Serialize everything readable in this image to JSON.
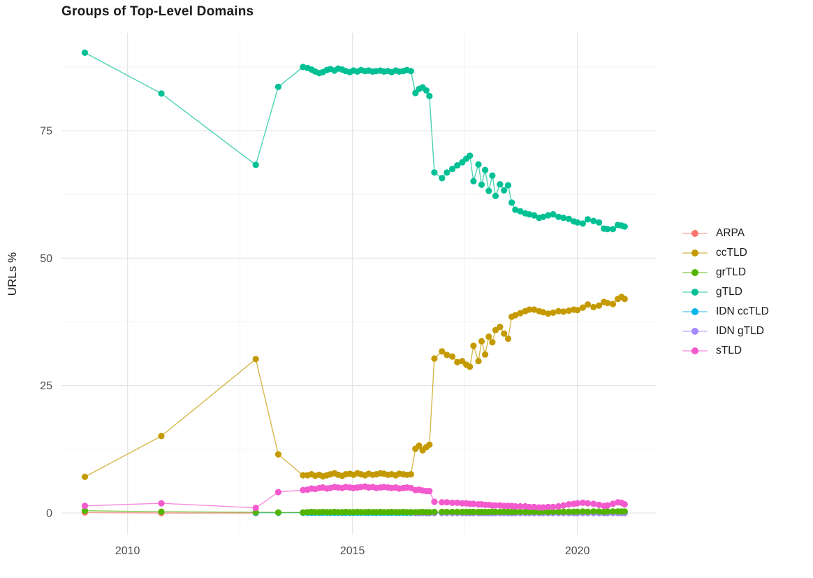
{
  "title": "Groups of Top-Level Domains",
  "chart_data": {
    "type": "line",
    "title": "Groups of Top-Level Domains",
    "xlabel": "",
    "ylabel": "URLs %",
    "grid": true,
    "legend_position": "right",
    "xlim": [
      2008.53,
      2021.76
    ],
    "ylim": [
      -4.25,
      94.2
    ],
    "x_ticks": {
      "labels": [
        "2010",
        "2015",
        "2020"
      ],
      "values": [
        2010,
        2015,
        2020
      ],
      "minor": [
        2012.5,
        2017.5
      ]
    },
    "y_ticks": {
      "labels": [
        "0",
        "25",
        "50",
        "75"
      ],
      "values": [
        0,
        25,
        50,
        75
      ],
      "minor": [
        12.5,
        37.5,
        62.5,
        87.5
      ]
    },
    "grid_major_color": "#e6e6e6",
    "grid_minor_color": "#f2f2f2",
    "axis_text_color": "#4d4d4d",
    "series": [
      {
        "name": "ARPA",
        "color": "#F8766D",
        "z": 0,
        "x": [
          2009.05,
          2010.75,
          2012.85
        ],
        "y": [
          0.1,
          0.0,
          0.0
        ]
      },
      {
        "name": "ccTLD",
        "color": "#C49A00",
        "z": 3,
        "x": [
          2009.05,
          2010.75,
          2012.85,
          2013.35,
          2013.9,
          2014.0,
          2014.09,
          2014.17,
          2014.26,
          2014.34,
          2014.43,
          2014.51,
          2014.6,
          2014.68,
          2014.77,
          2014.85,
          2014.94,
          2015.02,
          2015.11,
          2015.19,
          2015.28,
          2015.36,
          2015.45,
          2015.53,
          2015.62,
          2015.7,
          2015.79,
          2015.87,
          2015.96,
          2016.04,
          2016.13,
          2016.21,
          2016.3,
          2016.4,
          2016.48,
          2016.56,
          2016.64,
          2016.71,
          2016.82,
          2016.99,
          2017.1,
          2017.22,
          2017.33,
          2017.44,
          2017.53,
          2017.61,
          2017.69,
          2017.8,
          2017.87,
          2017.95,
          2018.03,
          2018.11,
          2018.18,
          2018.28,
          2018.37,
          2018.46,
          2018.54,
          2018.62,
          2018.73,
          2018.84,
          2018.93,
          2019.04,
          2019.15,
          2019.24,
          2019.35,
          2019.46,
          2019.58,
          2019.69,
          2019.81,
          2019.92,
          2020.0,
          2020.12,
          2020.23,
          2020.36,
          2020.48,
          2020.59,
          2020.67,
          2020.79,
          2020.9,
          2020.98,
          2021.05
        ],
        "y": [
          7.1,
          15.1,
          30.2,
          11.5,
          7.4,
          7.4,
          7.6,
          7.3,
          7.5,
          7.2,
          7.4,
          7.6,
          7.8,
          7.5,
          7.3,
          7.6,
          7.7,
          7.5,
          7.8,
          7.6,
          7.4,
          7.7,
          7.5,
          7.6,
          7.8,
          7.7,
          7.5,
          7.6,
          7.4,
          7.7,
          7.6,
          7.5,
          7.6,
          12.6,
          13.2,
          12.3,
          12.9,
          13.4,
          30.3,
          31.7,
          31.0,
          30.7,
          29.6,
          29.8,
          29.1,
          28.7,
          32.8,
          29.8,
          33.7,
          31.1,
          34.6,
          33.5,
          35.9,
          36.5,
          35.2,
          34.2,
          38.5,
          38.8,
          39.2,
          39.6,
          39.9,
          39.9,
          39.6,
          39.4,
          39.1,
          39.3,
          39.6,
          39.5,
          39.7,
          39.9,
          39.8,
          40.3,
          40.9,
          40.4,
          40.7,
          41.4,
          41.2,
          41.0,
          42.0,
          42.4,
          42.0
        ]
      },
      {
        "name": "grTLD",
        "color": "#53B400",
        "z": 4,
        "x": [
          2009.05,
          2010.75,
          2012.85,
          2013.35,
          2013.9,
          2014.0,
          2014.09,
          2014.17,
          2014.26,
          2014.34,
          2014.43,
          2014.51,
          2014.6,
          2014.68,
          2014.77,
          2014.85,
          2014.94,
          2015.02,
          2015.11,
          2015.19,
          2015.28,
          2015.36,
          2015.45,
          2015.53,
          2015.62,
          2015.7,
          2015.79,
          2015.87,
          2015.96,
          2016.04,
          2016.13,
          2016.21,
          2016.3,
          2016.4,
          2016.48,
          2016.56,
          2016.64,
          2016.71,
          2016.82,
          2016.99,
          2017.1,
          2017.22,
          2017.33,
          2017.44,
          2017.53,
          2017.61,
          2017.69,
          2017.8,
          2017.87,
          2017.95,
          2018.03,
          2018.11,
          2018.18,
          2018.28,
          2018.37,
          2018.46,
          2018.54,
          2018.62,
          2018.73,
          2018.84,
          2018.93,
          2019.04,
          2019.15,
          2019.24,
          2019.35,
          2019.46,
          2019.58,
          2019.69,
          2019.81,
          2019.92,
          2020.0,
          2020.12,
          2020.23,
          2020.36,
          2020.48,
          2020.59,
          2020.67,
          2020.79,
          2020.9,
          2020.98,
          2021.05
        ],
        "y": [
          0.45,
          0.25,
          0.15,
          0.1,
          0.1,
          0.15,
          0.2,
          0.15,
          0.15,
          0.2,
          0.15,
          0.15,
          0.2,
          0.15,
          0.15,
          0.2,
          0.15,
          0.15,
          0.2,
          0.15,
          0.15,
          0.2,
          0.15,
          0.15,
          0.2,
          0.15,
          0.15,
          0.2,
          0.15,
          0.15,
          0.2,
          0.15,
          0.15,
          0.15,
          0.15,
          0.2,
          0.15,
          0.15,
          0.2,
          0.2,
          0.2,
          0.2,
          0.2,
          0.2,
          0.2,
          0.2,
          0.2,
          0.2,
          0.2,
          0.2,
          0.2,
          0.25,
          0.2,
          0.2,
          0.25,
          0.2,
          0.2,
          0.2,
          0.25,
          0.2,
          0.2,
          0.25,
          0.2,
          0.25,
          0.2,
          0.25,
          0.25,
          0.25,
          0.25,
          0.25,
          0.25,
          0.3,
          0.25,
          0.3,
          0.3,
          0.25,
          0.3,
          0.3,
          0.3,
          0.3,
          0.3
        ]
      },
      {
        "name": "gTLD",
        "color": "#00C094",
        "z": 5,
        "x": [
          2009.05,
          2010.75,
          2012.85,
          2013.35,
          2013.9,
          2014.0,
          2014.09,
          2014.17,
          2014.26,
          2014.34,
          2014.43,
          2014.51,
          2014.6,
          2014.68,
          2014.77,
          2014.85,
          2014.94,
          2015.02,
          2015.11,
          2015.19,
          2015.28,
          2015.36,
          2015.45,
          2015.53,
          2015.62,
          2015.7,
          2015.79,
          2015.87,
          2015.96,
          2016.04,
          2016.13,
          2016.21,
          2016.3,
          2016.4,
          2016.48,
          2016.56,
          2016.64,
          2016.71,
          2016.82,
          2016.99,
          2017.1,
          2017.22,
          2017.33,
          2017.44,
          2017.53,
          2017.61,
          2017.69,
          2017.8,
          2017.87,
          2017.95,
          2018.03,
          2018.11,
          2018.18,
          2018.28,
          2018.37,
          2018.46,
          2018.54,
          2018.62,
          2018.73,
          2018.84,
          2018.93,
          2019.04,
          2019.15,
          2019.24,
          2019.35,
          2019.46,
          2019.58,
          2019.69,
          2019.81,
          2019.92,
          2020.0,
          2020.12,
          2020.23,
          2020.36,
          2020.48,
          2020.59,
          2020.67,
          2020.79,
          2020.9,
          2020.98,
          2021.05
        ],
        "y": [
          90.3,
          82.3,
          68.3,
          83.6,
          87.5,
          87.3,
          87.0,
          86.6,
          86.3,
          86.5,
          86.9,
          87.1,
          86.8,
          87.2,
          87.0,
          86.7,
          86.5,
          86.8,
          86.6,
          86.9,
          86.7,
          86.8,
          86.6,
          86.7,
          86.8,
          86.6,
          86.7,
          86.5,
          86.8,
          86.6,
          86.7,
          86.9,
          86.7,
          82.4,
          83.2,
          83.5,
          82.9,
          81.8,
          66.8,
          65.7,
          66.8,
          67.5,
          68.2,
          68.8,
          69.5,
          70.1,
          65.1,
          68.4,
          64.4,
          67.3,
          63.2,
          66.2,
          62.2,
          64.5,
          63.3,
          64.3,
          60.9,
          59.5,
          59.2,
          58.8,
          58.6,
          58.4,
          57.9,
          58.1,
          58.4,
          58.6,
          58.1,
          57.9,
          57.7,
          57.2,
          57.0,
          56.8,
          57.6,
          57.3,
          57.0,
          55.8,
          55.7,
          55.7,
          56.5,
          56.4,
          56.2
        ]
      },
      {
        "name": "IDN ccTLD",
        "color": "#00B6EB",
        "z": 1,
        "x": [
          2012.85,
          2013.35,
          2013.9,
          2014.0,
          2014.09,
          2014.17,
          2014.26,
          2014.34,
          2014.43,
          2014.51,
          2014.6,
          2014.68,
          2014.77,
          2014.85,
          2014.94,
          2015.02,
          2015.11,
          2015.19,
          2015.28,
          2015.36,
          2015.45,
          2015.53,
          2015.62,
          2015.7,
          2015.79,
          2015.87,
          2015.96,
          2016.04,
          2016.13,
          2016.21,
          2016.3,
          2016.4,
          2016.48,
          2016.56,
          2016.64,
          2016.71,
          2016.82,
          2016.99,
          2017.1,
          2017.22,
          2017.33,
          2017.44,
          2017.53,
          2017.61,
          2017.69,
          2017.8,
          2017.87,
          2017.95,
          2018.03,
          2018.11,
          2018.18,
          2018.28,
          2018.37,
          2018.46,
          2018.54,
          2018.62,
          2018.73,
          2018.84,
          2018.93,
          2019.04,
          2019.15,
          2019.24,
          2019.35,
          2019.46,
          2019.58,
          2019.69,
          2019.81,
          2019.92,
          2020.0,
          2020.12,
          2020.23,
          2020.36,
          2020.48,
          2020.59,
          2020.67,
          2020.79,
          2020.9,
          2020.98,
          2021.05
        ],
        "y_constant": 0.05
      },
      {
        "name": "IDN gTLD",
        "color": "#A58AFF",
        "z": 2,
        "x": [
          2016.4,
          2016.48,
          2016.56,
          2016.64,
          2016.71,
          2016.82,
          2016.99,
          2017.1,
          2017.22,
          2017.33,
          2017.44,
          2017.53,
          2017.61,
          2017.69,
          2017.8,
          2017.87,
          2017.95,
          2018.03,
          2018.11,
          2018.18,
          2018.28,
          2018.37,
          2018.46,
          2018.54,
          2018.62,
          2018.73,
          2018.84,
          2018.93,
          2019.04,
          2019.15,
          2019.24,
          2019.35,
          2019.46,
          2019.58,
          2019.69,
          2019.81,
          2019.92,
          2020.0,
          2020.12,
          2020.23,
          2020.36,
          2020.48,
          2020.59,
          2020.67,
          2020.79,
          2020.9,
          2020.98,
          2021.05
        ],
        "y_constant": 0.0
      },
      {
        "name": "sTLD",
        "color": "#F25ACD",
        "z": 6,
        "x": [
          2009.05,
          2010.75,
          2012.85,
          2013.35,
          2013.9,
          2014.0,
          2014.09,
          2014.17,
          2014.26,
          2014.34,
          2014.43,
          2014.51,
          2014.6,
          2014.68,
          2014.77,
          2014.85,
          2014.94,
          2015.02,
          2015.11,
          2015.19,
          2015.28,
          2015.36,
          2015.45,
          2015.53,
          2015.62,
          2015.7,
          2015.79,
          2015.87,
          2015.96,
          2016.04,
          2016.13,
          2016.21,
          2016.3,
          2016.4,
          2016.48,
          2016.56,
          2016.64,
          2016.71,
          2016.82,
          2016.99,
          2017.1,
          2017.22,
          2017.33,
          2017.44,
          2017.53,
          2017.61,
          2017.69,
          2017.8,
          2017.87,
          2017.95,
          2018.03,
          2018.11,
          2018.18,
          2018.28,
          2018.37,
          2018.46,
          2018.54,
          2018.62,
          2018.73,
          2018.84,
          2018.93,
          2019.04,
          2019.15,
          2019.24,
          2019.35,
          2019.46,
          2019.58,
          2019.69,
          2019.81,
          2019.92,
          2020.0,
          2020.12,
          2020.23,
          2020.36,
          2020.48,
          2020.59,
          2020.67,
          2020.79,
          2020.9,
          2020.98,
          2021.05
        ],
        "y": [
          1.4,
          1.9,
          1.0,
          4.1,
          4.5,
          4.6,
          4.8,
          4.7,
          4.9,
          5.0,
          4.8,
          4.9,
          5.1,
          5.0,
          4.9,
          5.1,
          5.0,
          4.9,
          5.0,
          5.1,
          5.2,
          5.0,
          5.1,
          4.9,
          5.0,
          5.1,
          5.0,
          4.9,
          5.0,
          4.8,
          4.9,
          5.0,
          4.9,
          4.5,
          4.6,
          4.4,
          4.3,
          4.3,
          2.2,
          2.1,
          2.1,
          2.0,
          2.0,
          1.9,
          1.9,
          1.8,
          1.8,
          1.7,
          1.7,
          1.6,
          1.6,
          1.5,
          1.5,
          1.5,
          1.4,
          1.4,
          1.4,
          1.3,
          1.3,
          1.3,
          1.2,
          1.2,
          1.1,
          1.1,
          1.2,
          1.2,
          1.3,
          1.5,
          1.7,
          1.8,
          1.9,
          2.0,
          1.9,
          1.8,
          1.6,
          1.4,
          1.5,
          1.8,
          2.1,
          2.0,
          1.7
        ]
      }
    ]
  }
}
